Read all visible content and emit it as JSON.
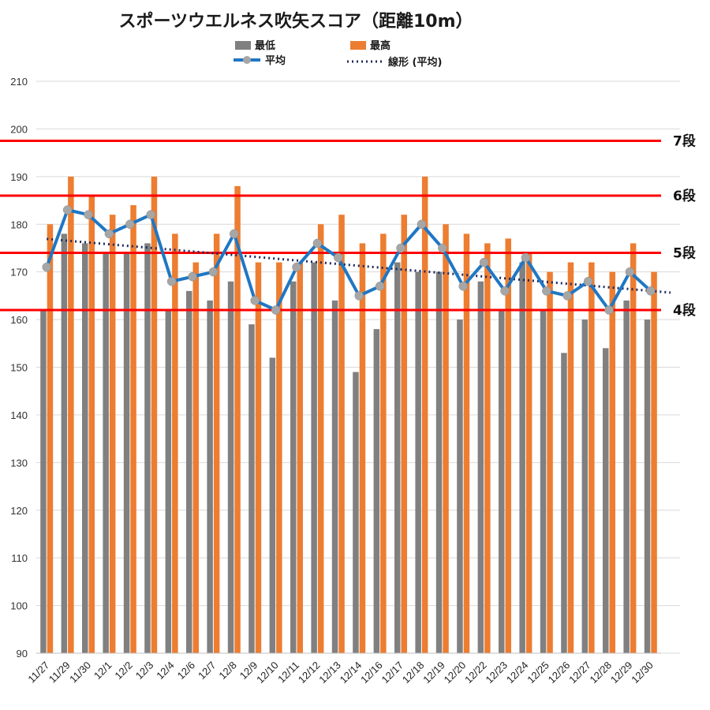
{
  "chart_data": {
    "type": "bar",
    "title": "スポーツウエルネス吹矢スコア（距離10m）",
    "categories": [
      "11/27",
      "11/29",
      "11/30",
      "12/1",
      "12/2",
      "12/3",
      "12/4",
      "12/6",
      "12/7",
      "12/8",
      "12/9",
      "12/10",
      "12/11",
      "12/12",
      "12/13",
      "12/14",
      "12/16",
      "12/17",
      "12/18",
      "12/19",
      "12/20",
      "12/22",
      "12/23",
      "12/24",
      "12/25",
      "12/26",
      "12/27",
      "12/28",
      "12/29",
      "12/30"
    ],
    "series": [
      {
        "name": "最低",
        "type": "bar",
        "color": "#808080",
        "values": [
          162,
          178,
          176,
          174,
          174,
          176,
          162,
          166,
          164,
          168,
          159,
          152,
          168,
          172,
          164,
          149,
          158,
          172,
          170,
          170,
          160,
          168,
          162,
          172,
          162,
          153,
          160,
          154,
          164,
          160
        ]
      },
      {
        "name": "最高",
        "type": "bar",
        "color": "#ED7D31",
        "values": [
          180,
          190,
          186,
          182,
          184,
          190,
          178,
          172,
          178,
          188,
          172,
          172,
          172,
          180,
          182,
          176,
          178,
          182,
          190,
          180,
          178,
          176,
          177,
          174,
          170,
          172,
          172,
          170,
          176,
          170
        ]
      },
      {
        "name": "平均",
        "type": "line",
        "color": "#1F77C4",
        "marker_color": "#A6A6A6",
        "values": [
          171,
          183,
          182,
          178,
          180,
          182,
          168,
          169,
          170,
          178,
          164,
          162,
          171,
          176,
          173,
          165,
          167,
          175,
          180,
          175,
          167,
          172,
          166,
          173,
          166,
          165,
          168,
          162,
          170,
          166
        ]
      },
      {
        "name": "線形 (平均)",
        "type": "trendline",
        "color": "#1F2A5C",
        "style": "dotted"
      }
    ],
    "ylim": [
      90,
      210
    ],
    "yticks": [
      90,
      100,
      110,
      120,
      130,
      140,
      150,
      160,
      170,
      180,
      190,
      200,
      210
    ],
    "grid": true,
    "legend_position": "top",
    "reference_lines": [
      {
        "value": 197.5,
        "label": "7段",
        "color": "#FF0000"
      },
      {
        "value": 186,
        "label": "6段",
        "color": "#FF0000"
      },
      {
        "value": 174,
        "label": "5段",
        "color": "#FF0000"
      },
      {
        "value": 162,
        "label": "4段",
        "color": "#FF0000"
      }
    ]
  }
}
